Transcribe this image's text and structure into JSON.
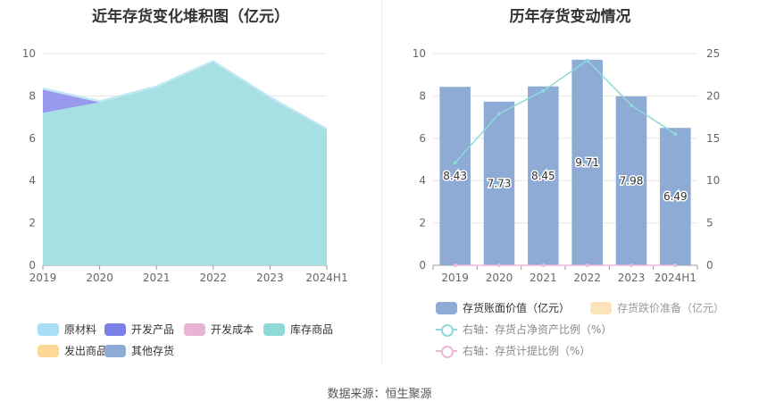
{
  "left_panel": {
    "title": "近年存货变化堆积图（亿元）",
    "legend": [
      {
        "label": "原材料",
        "color": "#a8dff5"
      },
      {
        "label": "开发产品",
        "color": "#7b7fe8"
      },
      {
        "label": "开发成本",
        "color": "#e8b4d4"
      },
      {
        "label": "库存商品",
        "color": "#8fd9d9"
      },
      {
        "label": "发出商品",
        "color": "#fbd995"
      },
      {
        "label": "其他存货",
        "color": "#8eabd6"
      }
    ]
  },
  "right_panel": {
    "title": "历年存货变动情况",
    "legend": [
      {
        "label": "存货账面价值（亿元）",
        "color": "#8eabd6",
        "kind": "bar"
      },
      {
        "label": "存货跌价准备（亿元）",
        "color": "#fbe3bb",
        "kind": "bar"
      },
      {
        "label": "右轴：存货占净资产比例（%）",
        "color": "#8fd9d9",
        "kind": "line"
      },
      {
        "label": "右轴：存货计提比例（%）",
        "color": "#ebb8d6",
        "kind": "line"
      }
    ]
  },
  "source": "数据来源：恒生聚源",
  "chart_data": [
    {
      "type": "area",
      "stacked": true,
      "title": "近年存货变化堆积图（亿元）",
      "categories": [
        "2019",
        "2020",
        "2021",
        "2022",
        "2023",
        "2024H1"
      ],
      "ylim": [
        0,
        10
      ],
      "yticks": [
        0,
        2,
        4,
        6,
        8,
        10
      ],
      "grid": true,
      "legend_position": "bottom",
      "series": [
        {
          "name": "库存商品",
          "color": "#a6e0e2",
          "values": [
            7.2,
            7.7,
            8.4,
            9.6,
            7.9,
            6.4
          ]
        },
        {
          "name": "开发产品",
          "color": "#9999ee",
          "values": [
            1.1,
            0,
            0,
            0,
            0,
            0
          ]
        },
        {
          "name": "原材料",
          "color": "#c2e8f6",
          "values": [
            0.1,
            0.1,
            0.1,
            0.1,
            0.1,
            0.1
          ]
        }
      ]
    },
    {
      "type": "bar",
      "title": "历年存货变动情况",
      "categories": [
        "2019",
        "2020",
        "2021",
        "2022",
        "2023",
        "2024H1"
      ],
      "ylim": [
        0,
        10
      ],
      "yticks": [
        0,
        2,
        4,
        6,
        8,
        10
      ],
      "y2lim": [
        0,
        25
      ],
      "y2ticks": [
        0,
        5,
        10,
        15,
        20,
        25
      ],
      "grid": true,
      "legend_position": "bottom",
      "series": [
        {
          "name": "存货账面价值（亿元）",
          "type": "bar",
          "axis": "left",
          "color": "#8eabd6",
          "values": [
            8.43,
            7.73,
            8.45,
            9.71,
            7.98,
            6.49
          ],
          "labels": [
            "8.43",
            "7.73",
            "8.45",
            "9.71",
            "7.98",
            "6.49"
          ]
        },
        {
          "name": "存货跌价准备（亿元）",
          "type": "bar",
          "axis": "left",
          "color": "#fbe3bb",
          "values": [
            0,
            0,
            0,
            0,
            0,
            0
          ]
        },
        {
          "name": "右轴：存货占净资产比例（%）",
          "type": "line",
          "axis": "right",
          "color": "#8fd9d9",
          "values": [
            12.1,
            17.9,
            20.6,
            24.2,
            18.9,
            15.5
          ]
        },
        {
          "name": "右轴：存货计提比例（%）",
          "type": "line",
          "axis": "right",
          "color": "#ebb8d6",
          "values": [
            0,
            0,
            0,
            0,
            0,
            0
          ]
        }
      ]
    }
  ]
}
